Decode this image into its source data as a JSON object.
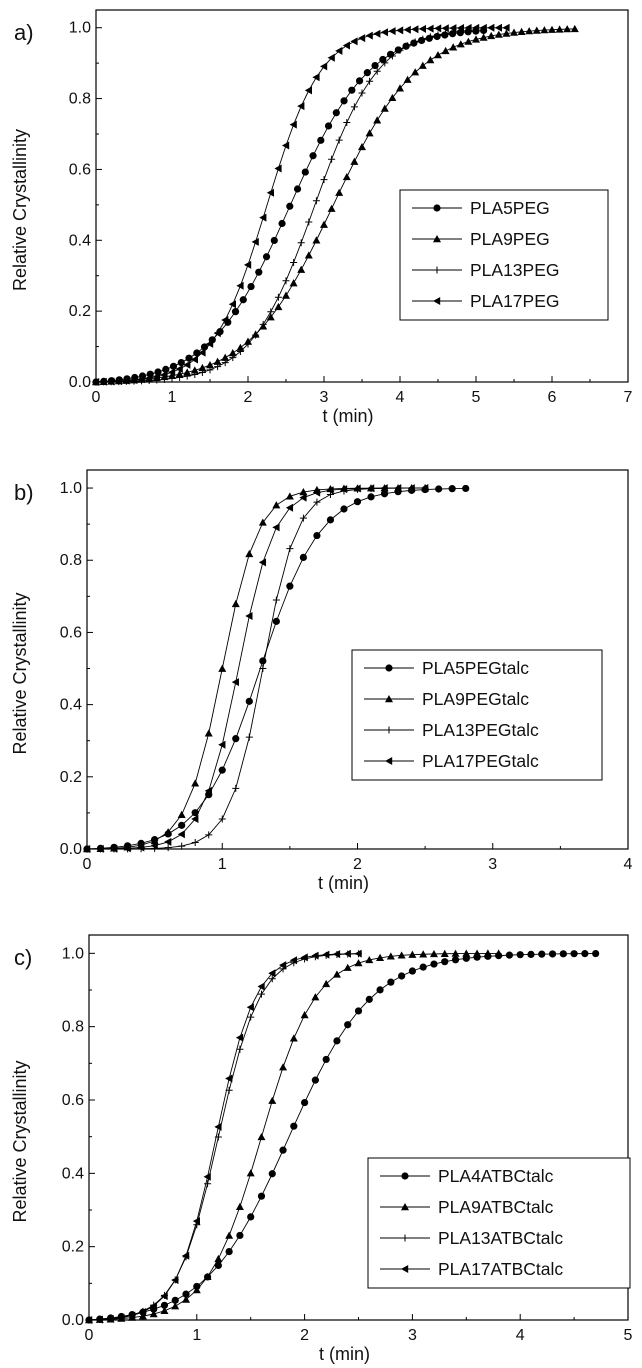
{
  "chart_data": [
    {
      "type": "line",
      "panel_label": "a)",
      "xlabel": "t (min)",
      "ylabel": "Relative Crystallinity",
      "xlim": [
        0,
        7
      ],
      "ylim": [
        0,
        1.05
      ],
      "xticks": [
        "0",
        "1",
        "2",
        "3",
        "4",
        "5",
        "6",
        "7"
      ],
      "yticks": [
        "0.0",
        "0.2",
        "0.4",
        "0.6",
        "0.8",
        "1.0"
      ],
      "legend_position": "right-middle",
      "series": [
        {
          "name": "PLA5PEG",
          "marker": "circle",
          "t0": 2.55,
          "k": 1.9,
          "tmax": 5.1,
          "n": 51
        },
        {
          "name": "PLA9PEG",
          "marker": "triangle-up",
          "t0": 3.12,
          "k": 1.8,
          "tmax": 6.3,
          "n": 64
        },
        {
          "name": "PLA13PEG",
          "marker": "plus",
          "t0": 2.88,
          "k": 2.4,
          "tmax": 5.0,
          "n": 51
        },
        {
          "name": "PLA17PEG",
          "marker": "triangle-left",
          "t0": 2.25,
          "k": 2.8,
          "tmax": 5.4,
          "n": 55
        }
      ]
    },
    {
      "type": "line",
      "panel_label": "b)",
      "xlabel": "t (min)",
      "ylabel": "Relative Crystallinity",
      "xlim": [
        0,
        4
      ],
      "ylim": [
        0,
        1.05
      ],
      "xticks": [
        "0",
        "1",
        "2",
        "3",
        "4"
      ],
      "yticks": [
        "0.0",
        "0.2",
        "0.4",
        "0.6",
        "0.8",
        "1.0"
      ],
      "legend_position": "right-middle",
      "series": [
        {
          "name": "PLA5PEGtalc",
          "marker": "circle",
          "t0": 1.28,
          "k": 4.5,
          "tmax": 2.8,
          "n": 29
        },
        {
          "name": "PLA9PEGtalc",
          "marker": "triangle-up",
          "t0": 1.0,
          "k": 7.5,
          "tmax": 2.5,
          "n": 26
        },
        {
          "name": "PLA13PEGtalc",
          "marker": "plus",
          "t0": 1.3,
          "k": 8.0,
          "tmax": 2.5,
          "n": 26
        },
        {
          "name": "PLA17PEGtalc",
          "marker": "triangle-left",
          "t0": 1.12,
          "k": 7.5,
          "tmax": 2.5,
          "n": 26
        }
      ]
    },
    {
      "type": "line",
      "panel_label": "c)",
      "xlabel": "t (min)",
      "ylabel": "Relative Crystallinity",
      "xlim": [
        0,
        5
      ],
      "ylim": [
        0,
        1.05
      ],
      "xticks": [
        "0",
        "1",
        "2",
        "3",
        "4",
        "5"
      ],
      "yticks": [
        "0.0",
        "0.2",
        "0.4",
        "0.6",
        "0.8",
        "1.0"
      ],
      "legend_position": "right-bottom",
      "series": [
        {
          "name": "PLA4ATBCtalc",
          "marker": "circle",
          "t0": 1.85,
          "k": 2.6,
          "tmax": 4.7,
          "n": 48
        },
        {
          "name": "PLA9ATBCtalc",
          "marker": "triangle-up",
          "t0": 1.6,
          "k": 4.0,
          "tmax": 3.8,
          "n": 39
        },
        {
          "name": "PLA13ATBCtalc",
          "marker": "plus",
          "t0": 1.2,
          "k": 5.2,
          "tmax": 2.5,
          "n": 26
        },
        {
          "name": "PLA17ATBCtalc",
          "marker": "triangle-left",
          "t0": 1.18,
          "k": 5.5,
          "tmax": 2.5,
          "n": 26
        }
      ]
    }
  ]
}
